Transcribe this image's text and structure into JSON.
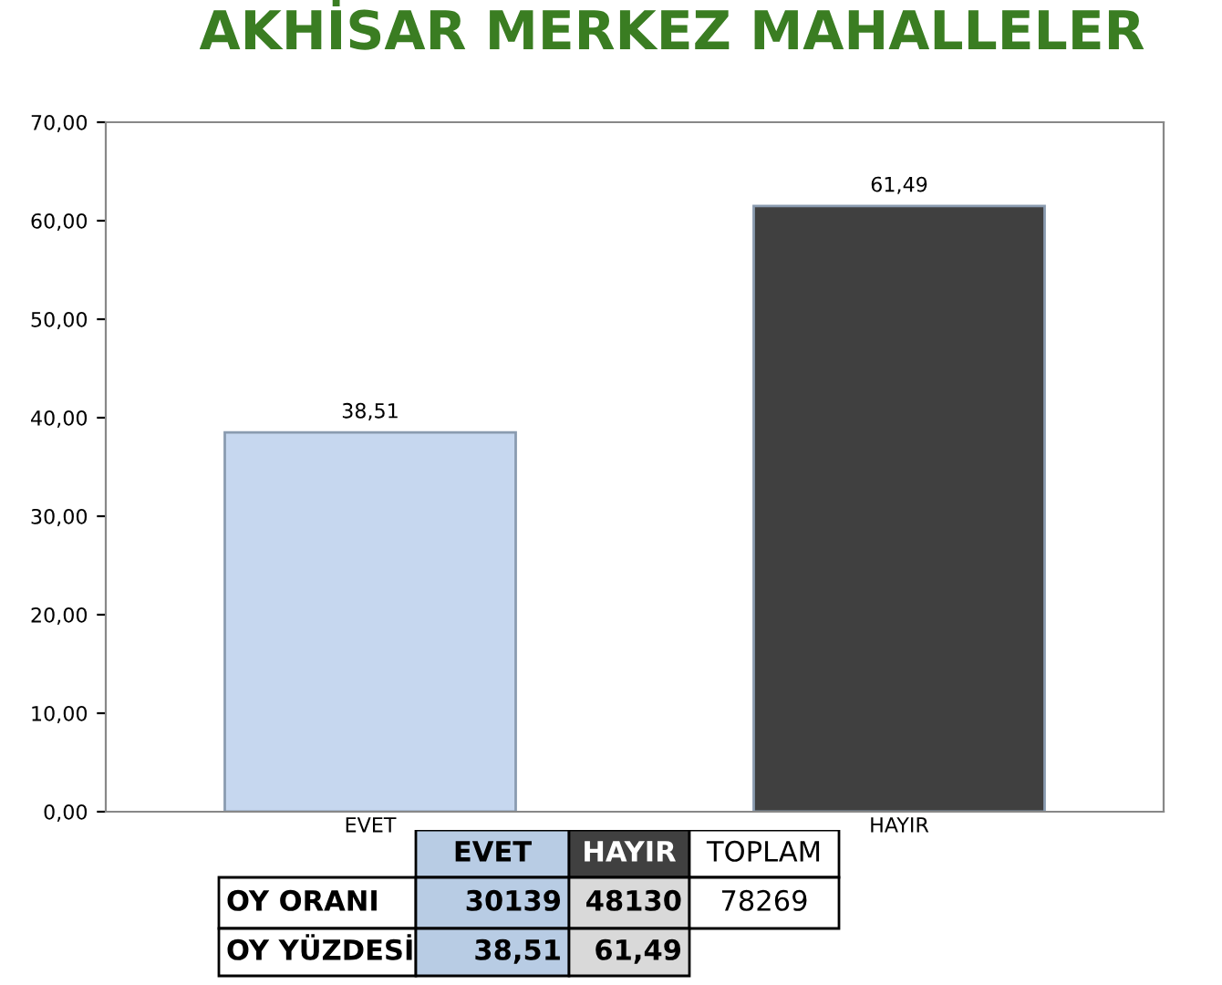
{
  "chart_data": {
    "type": "bar",
    "title": "AKHİSAR MERKEZ MAHALLELER",
    "categories": [
      "EVET",
      "HAYIR"
    ],
    "values": [
      38.51,
      61.49
    ],
    "colors": [
      "#c6d7ef",
      "#404040"
    ],
    "value_labels": [
      "38,51",
      "61,49"
    ],
    "ylim": [
      0,
      70
    ],
    "yticks": [
      {
        "value": 0,
        "label": "0,00"
      },
      {
        "value": 10,
        "label": "10,00"
      },
      {
        "value": 20,
        "label": "20,00"
      },
      {
        "value": 30,
        "label": "30,00"
      },
      {
        "value": 40,
        "label": "40,00"
      },
      {
        "value": 50,
        "label": "50,00"
      },
      {
        "value": 60,
        "label": "60,00"
      },
      {
        "value": 70,
        "label": "70,00"
      }
    ],
    "annotations": [
      "TOPLAM",
      "OY ORANI",
      "30139",
      "48130",
      "78269",
      "OY YÜZDESİ"
    ]
  }
}
